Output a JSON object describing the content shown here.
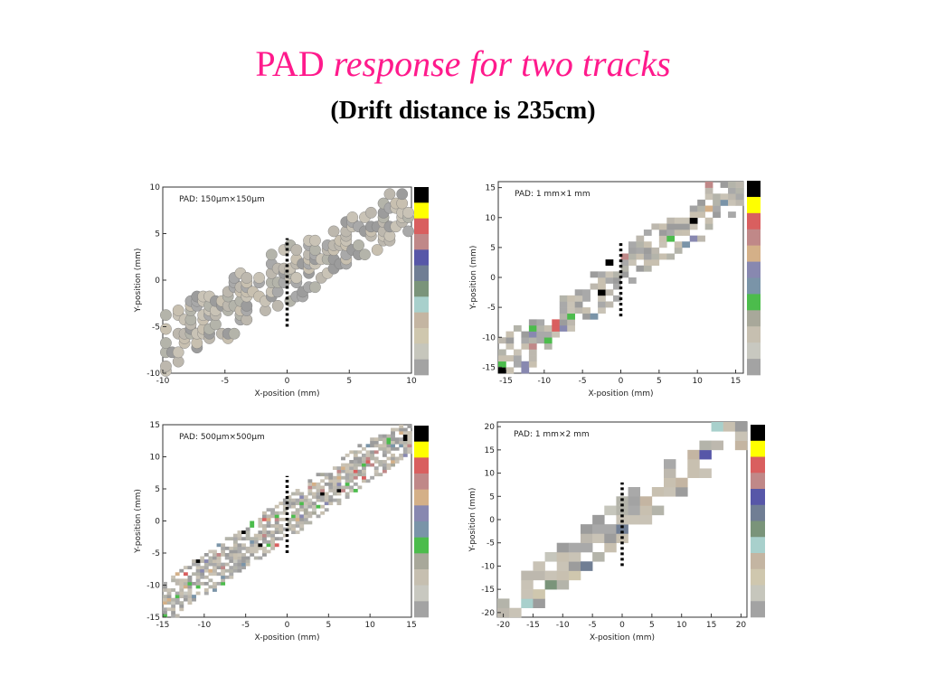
{
  "title_main": "PAD",
  "title_italic": "response for two tracks",
  "subtitle": "(Drift distance is 235cm)",
  "chart_data": [
    {
      "type": "heatmap",
      "annotation": "PAD: 150μm×150μm",
      "x_label": "X-position (mm)",
      "y_label": "Y-position (mm)",
      "xlim": [
        -10,
        10
      ],
      "ylim": [
        -10,
        10
      ],
      "xticks": [
        -10,
        -5,
        0,
        5,
        10
      ],
      "yticks": [
        -10,
        -5,
        0,
        5,
        10
      ],
      "cut_line": {
        "x": 0,
        "y": [
          -5,
          4.5
        ]
      },
      "colorscale": [
        "#000000",
        "#ffff00",
        "#d95f5f",
        "#c08888",
        "#5757a8",
        "#707e94",
        "#7a947a",
        "#a8d0cc",
        "#c4b5a2",
        "#cfc7ae",
        "#c6c6bc",
        "#a3a3a3"
      ]
    },
    {
      "type": "heatmap",
      "annotation": "PAD: 1 mm×1 mm",
      "x_label": "X-position (mm)",
      "y_label": "Y-position (mm)",
      "xlim": [
        -16,
        16
      ],
      "ylim": [
        -16,
        16
      ],
      "xticks": [
        -15,
        -10,
        -5,
        0,
        5,
        10,
        15
      ],
      "yticks": [
        -15,
        -10,
        -5,
        0,
        5,
        10,
        15
      ],
      "cut_line": {
        "x": 0,
        "y": [
          -6.5,
          6
        ]
      },
      "colorscale": [
        "#000000",
        "#ffff00",
        "#d95f5f",
        "#c08888",
        "#d4b088",
        "#8888b0",
        "#7a94a8",
        "#4cbc4c",
        "#a8a89a",
        "#c6bfb0",
        "#c8c8c0",
        "#a3a3a3"
      ]
    },
    {
      "type": "heatmap",
      "annotation": "PAD: 500μm×500μm",
      "x_label": "X-position (mm)",
      "y_label": "Y-position (mm)",
      "xlim": [
        -15,
        15
      ],
      "ylim": [
        -15,
        15
      ],
      "xticks": [
        -15,
        -10,
        -5,
        0,
        5,
        10,
        15
      ],
      "yticks": [
        -15,
        -10,
        -5,
        0,
        5,
        10,
        15
      ],
      "cut_line": {
        "x": 0,
        "y": [
          -5,
          7
        ]
      },
      "colorscale": [
        "#000000",
        "#ffff00",
        "#d95f5f",
        "#c08888",
        "#d4b088",
        "#8888b0",
        "#7a94a8",
        "#4cbc4c",
        "#a8a89a",
        "#c6bfb0",
        "#c8c8c0",
        "#a3a3a3"
      ]
    },
    {
      "type": "heatmap",
      "annotation": "PAD: 1 mm×2 mm",
      "x_label": "X-position (mm)",
      "y_label": "Y-position (mm)",
      "xlim": [
        -21,
        21
      ],
      "ylim": [
        -21,
        21
      ],
      "xticks": [
        -20,
        -15,
        -10,
        -5,
        0,
        5,
        10,
        15,
        20
      ],
      "yticks": [
        -20,
        -15,
        -10,
        -5,
        0,
        5,
        10,
        15,
        20
      ],
      "cut_line": {
        "x": 0,
        "y": [
          -10,
          8
        ]
      },
      "colorscale": [
        "#000000",
        "#ffff00",
        "#d95f5f",
        "#c08888",
        "#5757a8",
        "#707e94",
        "#7a947a",
        "#a8d0cc",
        "#c4b5a2",
        "#cfc7ae",
        "#c6c6bc",
        "#a3a3a3"
      ]
    }
  ]
}
